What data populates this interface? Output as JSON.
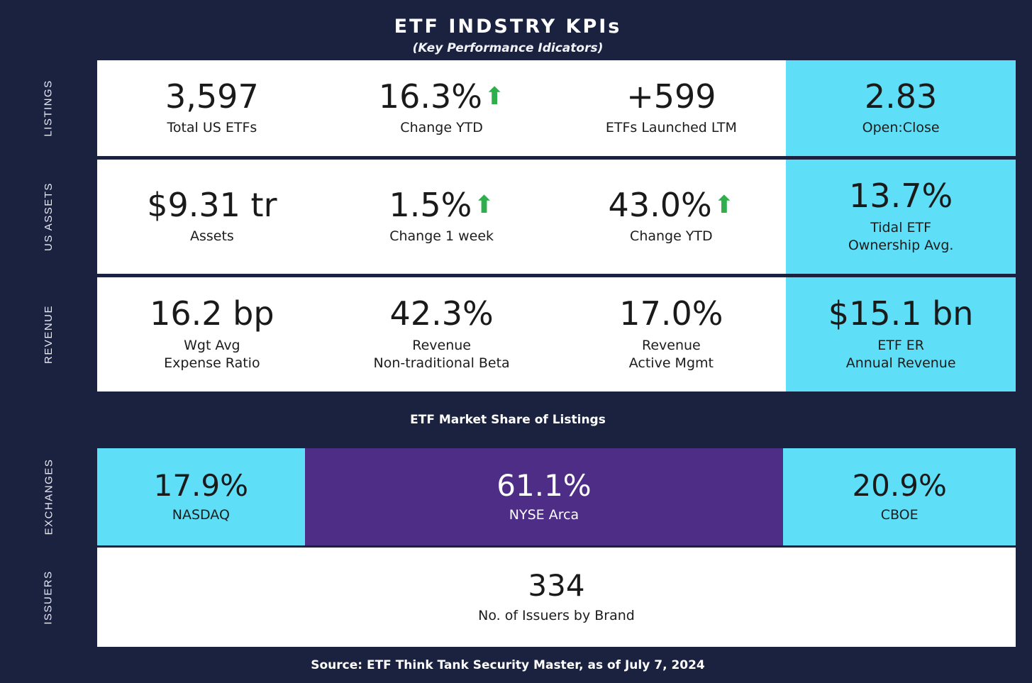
{
  "header": {
    "title": "ETF INDSTRY KPIs",
    "subtitle": "(Key Performance Idicators)"
  },
  "sections": [
    "LISTINGS",
    "US ASSETS",
    "REVENUE",
    "EXCHANGES",
    "ISSUERS"
  ],
  "kpi_rows": [
    {
      "section": "LISTINGS",
      "cells": [
        {
          "value": "3,597",
          "label": "Total US ETFs"
        },
        {
          "value": "16.3%",
          "label": "Change YTD",
          "arrow": "up"
        },
        {
          "value": "+599",
          "label": "ETFs Launched LTM"
        },
        {
          "value": "2.83",
          "label": "Open:Close",
          "highlight": true
        }
      ]
    },
    {
      "section": "US ASSETS",
      "cells": [
        {
          "value": "$9.31 tr",
          "label": "Assets"
        },
        {
          "value": "1.5%",
          "label": "Change 1 week",
          "arrow": "up"
        },
        {
          "value": "43.0%",
          "label": "Change YTD",
          "arrow": "up"
        },
        {
          "value": "13.7%",
          "label": "Tidal ETF\nOwnership Avg.",
          "highlight": true
        }
      ]
    },
    {
      "section": "REVENUE",
      "cells": [
        {
          "value": "16.2 bp",
          "label": "Wgt Avg\nExpense Ratio"
        },
        {
          "value": "42.3%",
          "label": "Revenue\nNon-traditional Beta"
        },
        {
          "value": "17.0%",
          "label": "Revenue\nActive Mgmt"
        },
        {
          "value": "$15.1 bn",
          "label": "ETF ER\nAnnual Revenue",
          "highlight": true
        }
      ]
    }
  ],
  "market_share": {
    "title": "ETF Market Share of Listings",
    "segments": [
      {
        "value": "17.9%",
        "label": "NASDAQ"
      },
      {
        "value": "61.1%",
        "label": "NYSE Arca"
      },
      {
        "value": "20.9%",
        "label": "CBOE"
      }
    ]
  },
  "issuers": {
    "value": "334",
    "label": "No. of Issuers by Brand"
  },
  "source": "Source: ETF Think Tank Security Master, as of July 7, 2024",
  "colors": {
    "background": "#1b2240",
    "highlight_cyan": "#5fdef7",
    "purple": "#4e2d86",
    "arrow_green": "#2fae4c",
    "card_white": "#ffffff"
  },
  "chart_data": [
    {
      "type": "table",
      "title": "ETF INDSTRY KPIs (Key Performance Idicators)",
      "rows": [
        {
          "section": "Listings",
          "metrics": [
            {
              "label": "Total US ETFs",
              "value": 3597
            },
            {
              "label": "Change YTD",
              "value": 16.3,
              "unit": "%",
              "direction": "up"
            },
            {
              "label": "ETFs Launched LTM",
              "value": 599
            },
            {
              "label": "Open:Close",
              "value": 2.83
            }
          ]
        },
        {
          "section": "US Assets",
          "metrics": [
            {
              "label": "Assets",
              "value": 9.31,
              "unit": "$ trillion"
            },
            {
              "label": "Change 1 week",
              "value": 1.5,
              "unit": "%",
              "direction": "up"
            },
            {
              "label": "Change YTD",
              "value": 43.0,
              "unit": "%",
              "direction": "up"
            },
            {
              "label": "Tidal ETF Ownership Avg.",
              "value": 13.7,
              "unit": "%"
            }
          ]
        },
        {
          "section": "Revenue",
          "metrics": [
            {
              "label": "Wgt Avg Expense Ratio",
              "value": 16.2,
              "unit": "bp"
            },
            {
              "label": "Revenue Non-traditional Beta",
              "value": 42.3,
              "unit": "%"
            },
            {
              "label": "Revenue Active Mgmt",
              "value": 17.0,
              "unit": "%"
            },
            {
              "label": "ETF ER Annual Revenue",
              "value": 15.1,
              "unit": "$ billion"
            }
          ]
        },
        {
          "section": "Issuers",
          "metrics": [
            {
              "label": "No. of Issuers by Brand",
              "value": 334
            }
          ]
        }
      ]
    },
    {
      "type": "bar",
      "subtype": "stacked-horizontal",
      "title": "ETF Market Share of Listings",
      "categories": [
        "NASDAQ",
        "NYSE Arca",
        "CBOE"
      ],
      "values": [
        17.9,
        61.1,
        20.9
      ],
      "unit": "%",
      "colors": [
        "#5fdef7",
        "#4e2d86",
        "#5fdef7"
      ]
    }
  ]
}
